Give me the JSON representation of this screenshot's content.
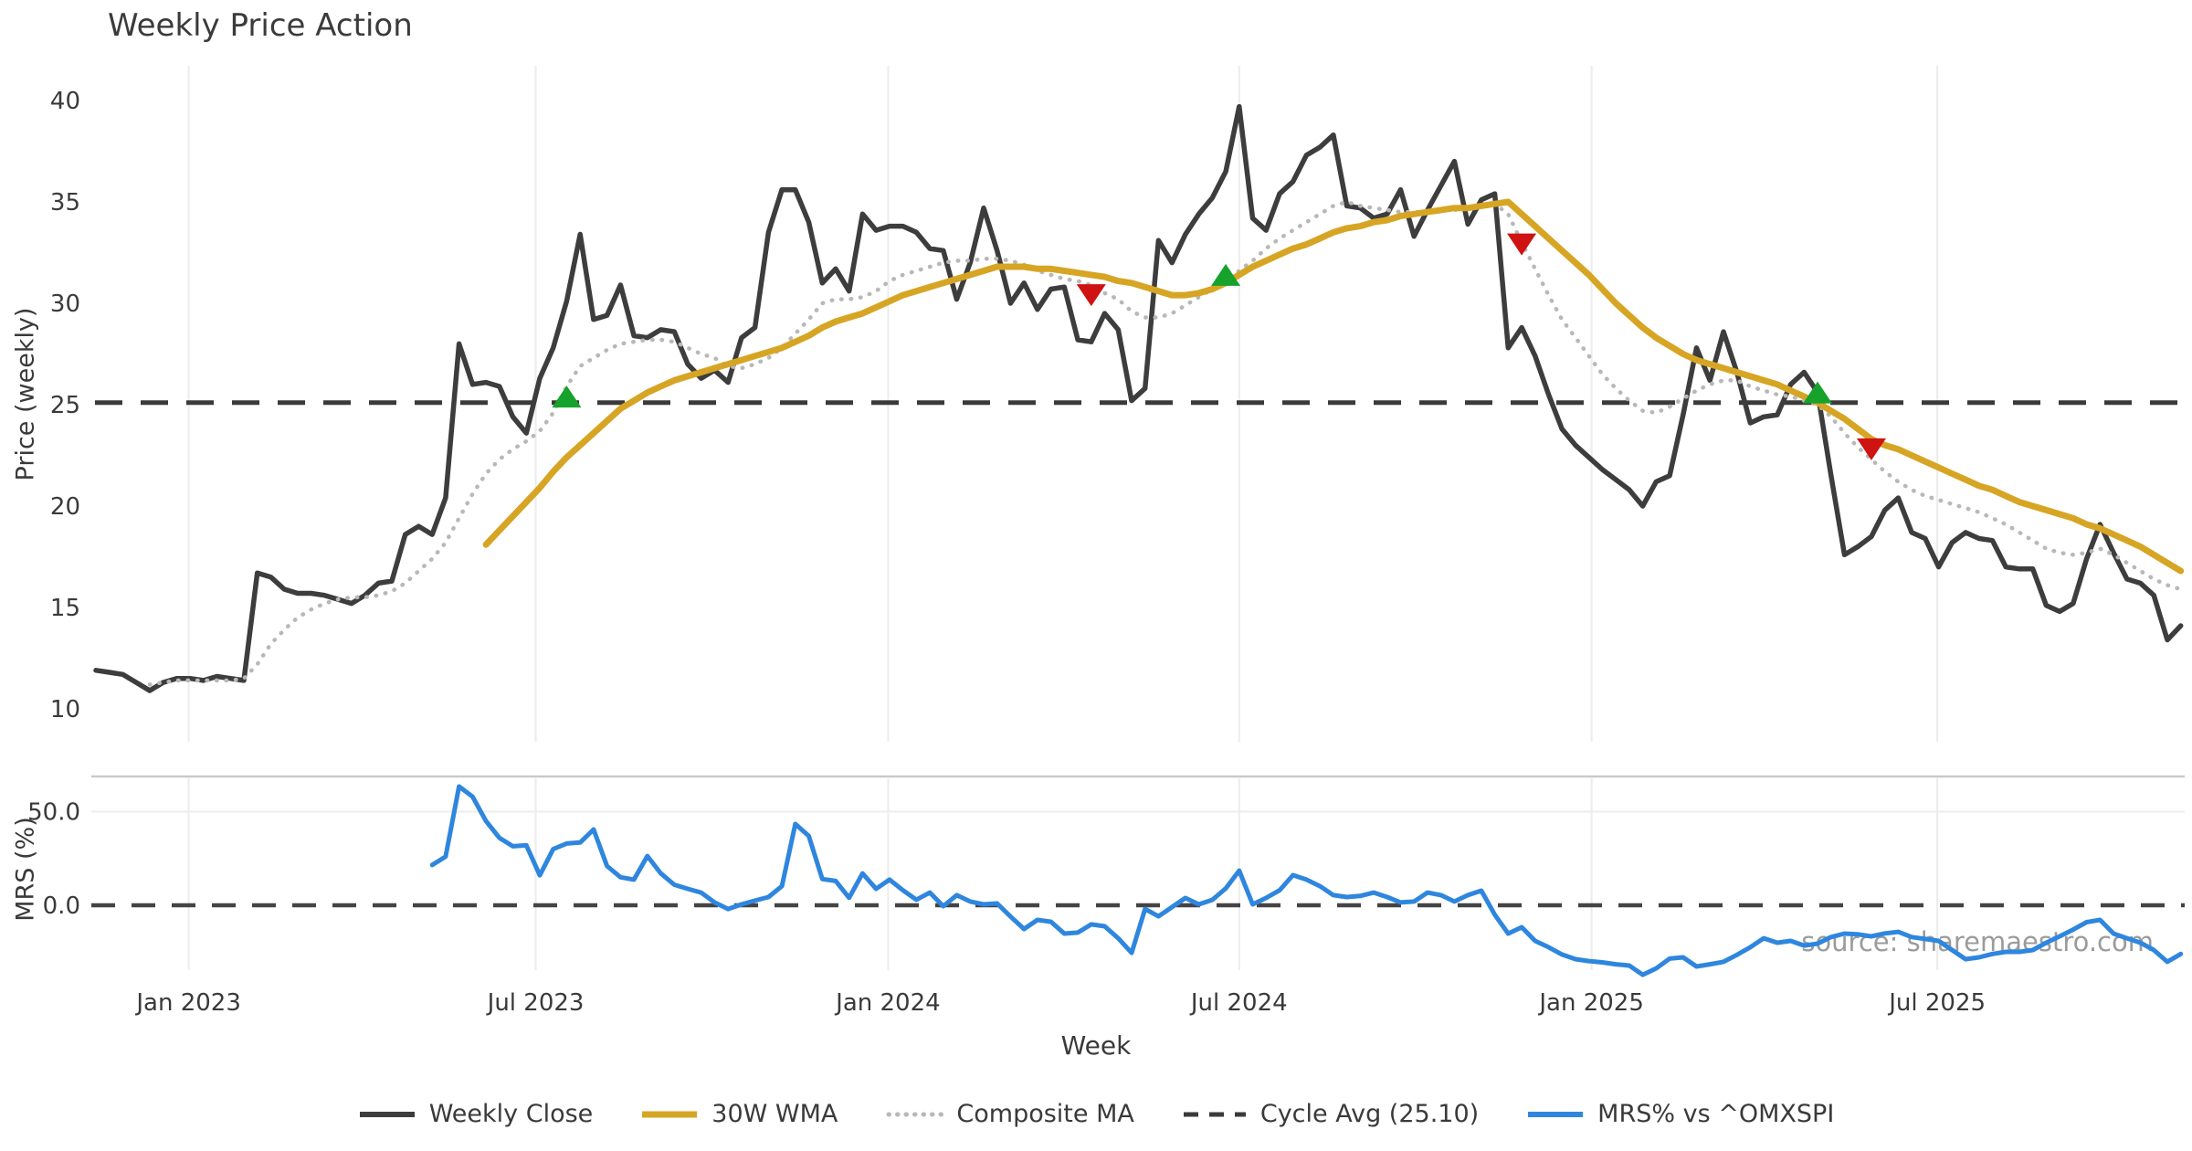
{
  "title": "Weekly Price Action",
  "watermark": "source: sharemaestro.com",
  "axes": {
    "y_main_label": "Price (weekly)",
    "y_lower_label": "MRS (%)",
    "x_label": "Week",
    "y_main_ticks": [
      40,
      35,
      30,
      25,
      20,
      15,
      10
    ],
    "y_lower_ticks": [
      {
        "label": "50.0",
        "value": 50
      },
      {
        "label": "0.0",
        "value": 0
      }
    ],
    "x_ticks": [
      {
        "label": "Jan 2023",
        "week": 6.9
      },
      {
        "label": "Jul 2023",
        "week": 32.7
      },
      {
        "label": "Jan 2024",
        "week": 58.9
      },
      {
        "label": "Jul 2024",
        "week": 85.0
      },
      {
        "label": "Jan 2025",
        "week": 111.2
      },
      {
        "label": "Jul 2025",
        "week": 136.9
      }
    ]
  },
  "legend": {
    "items": [
      {
        "label": "Weekly Close",
        "color": "#3d3d3d",
        "style": "solid"
      },
      {
        "label": "30W WMA",
        "color": "#d7a524",
        "style": "solid"
      },
      {
        "label": "Composite MA",
        "color": "#b8b8b8",
        "style": "dotted"
      },
      {
        "label": "Cycle Avg (25.10)",
        "color": "#3a3a3a",
        "style": "dashed"
      },
      {
        "label": "MRS% vs ^OMXSPI",
        "color": "#2e86de",
        "style": "solid"
      }
    ]
  },
  "colors": {
    "grid": "#ececec",
    "mrs_panel_border": "#c9c9c9",
    "mrs_50_gridline": "#ededed",
    "dashed_reference": "#3a3a3a",
    "tick_text": "#3a3a3a",
    "marker_up": "#17a22b",
    "marker_down": "#cf1212"
  },
  "chart_data": {
    "type": "line",
    "title": "Weekly Price Action",
    "xlabel": "Week",
    "ylabel_price": "Price (weekly)",
    "ylabel_mrs": "MRS (%)",
    "x_unit": "week_index",
    "weeks_total": 156,
    "x_range_dates": [
      "Nov 2022",
      "Nov 2025"
    ],
    "price_ylim": [
      9.5,
      41.5
    ],
    "mrs_ylim": [
      -45,
      68
    ],
    "cycle_avg": 25.1,
    "mrs_zero_line": 0,
    "grid": "vertical-only",
    "legend_position": "bottom",
    "series": [
      {
        "name": "Weekly Close",
        "panel": "price",
        "color": "#3d3d3d",
        "style": "solid",
        "width": 5.5,
        "start_week": 0,
        "values": [
          11.9,
          11.8,
          11.7,
          11.3,
          10.9,
          11.3,
          11.5,
          11.5,
          11.4,
          11.6,
          11.5,
          11.4,
          16.7,
          16.5,
          15.9,
          15.7,
          15.7,
          15.6,
          15.4,
          15.2,
          15.6,
          16.2,
          16.3,
          18.6,
          19.0,
          18.6,
          20.4,
          28.0,
          26.0,
          26.1,
          25.9,
          24.4,
          23.6,
          26.3,
          27.8,
          30.1,
          33.4,
          29.2,
          29.4,
          30.9,
          28.4,
          28.3,
          28.7,
          28.6,
          27.0,
          26.3,
          26.7,
          26.1,
          28.3,
          28.8,
          33.5,
          35.6,
          35.6,
          34.0,
          31.0,
          31.7,
          30.6,
          34.4,
          33.6,
          33.8,
          33.8,
          33.5,
          32.7,
          32.6,
          30.2,
          32.0,
          34.7,
          32.6,
          30.0,
          31.0,
          29.7,
          30.7,
          30.8,
          28.2,
          28.1,
          29.5,
          28.7,
          25.2,
          25.8,
          33.1,
          32.0,
          33.4,
          34.4,
          35.2,
          36.5,
          39.7,
          34.2,
          33.6,
          35.4,
          36.0,
          37.3,
          37.7,
          38.3,
          34.8,
          34.7,
          34.2,
          34.4,
          35.6,
          33.3,
          34.6,
          35.8,
          37.0,
          33.9,
          35.1,
          35.4,
          27.8,
          28.8,
          27.4,
          25.5,
          23.8,
          23.0,
          22.4,
          21.8,
          21.3,
          20.8,
          20.0,
          21.2,
          21.5,
          24.5,
          27.8,
          26.2,
          28.6,
          26.6,
          24.1,
          24.4,
          24.5,
          26.0,
          26.6,
          25.6,
          21.5,
          17.6,
          18.0,
          18.5,
          19.8,
          20.4,
          18.7,
          18.4,
          17.0,
          18.2,
          18.7,
          18.4,
          18.3,
          17.0,
          16.9,
          16.9,
          15.1,
          14.8,
          15.2,
          17.4,
          19.1,
          17.7,
          16.4,
          16.2,
          15.6,
          13.4,
          14.1
        ]
      },
      {
        "name": "Composite MA",
        "panel": "price",
        "color": "#b8b8b8",
        "style": "dotted",
        "width": 4.5,
        "start_week": 4,
        "values": [
          11.2,
          11.3,
          11.4,
          11.4,
          11.4,
          11.4,
          11.4,
          11.5,
          12.2,
          13.2,
          13.9,
          14.5,
          14.9,
          15.2,
          15.4,
          15.5,
          15.5,
          15.6,
          15.8,
          16.2,
          16.8,
          17.4,
          18.2,
          19.4,
          20.6,
          21.6,
          22.3,
          22.8,
          23.2,
          23.7,
          24.6,
          25.9,
          26.9,
          27.3,
          27.7,
          28.0,
          28.1,
          28.2,
          28.2,
          28.1,
          27.8,
          27.5,
          27.3,
          26.9,
          26.8,
          27.0,
          27.3,
          27.8,
          28.5,
          29.2,
          30.0,
          30.2,
          30.2,
          30.3,
          30.6,
          31.1,
          31.4,
          31.6,
          31.8,
          32.0,
          32.1,
          32.1,
          32.2,
          32.2,
          32.1,
          31.9,
          31.6,
          31.4,
          31.2,
          31.1,
          30.9,
          30.5,
          30.2,
          29.6,
          29.3,
          29.3,
          29.5,
          29.9,
          30.3,
          30.7,
          31.1,
          31.6,
          32.1,
          32.7,
          33.2,
          33.6,
          34.0,
          34.4,
          34.8,
          35.0,
          34.8,
          34.7,
          34.6,
          34.5,
          34.5,
          34.5,
          34.6,
          34.6,
          34.7,
          34.8,
          34.9,
          34.4,
          33.0,
          31.7,
          30.4,
          29.2,
          28.3,
          27.4,
          26.5,
          25.8,
          25.2,
          24.7,
          24.6,
          24.9,
          25.3,
          25.7,
          26.0,
          26.2,
          26.2,
          25.9,
          25.7,
          25.5,
          25.4,
          25.2,
          25.0,
          24.4,
          23.6,
          22.9,
          22.3,
          21.7,
          21.2,
          20.8,
          20.5,
          20.3,
          20.1,
          19.9,
          19.7,
          19.4,
          19.1,
          18.7,
          18.3,
          17.9,
          17.7,
          17.6,
          17.7,
          17.9,
          17.6,
          17.2,
          16.8,
          16.4,
          16.1,
          15.9
        ]
      },
      {
        "name": "30W WMA",
        "panel": "price",
        "color": "#d7a524",
        "style": "solid",
        "width": 7,
        "start_week": 29,
        "values": [
          18.1,
          18.8,
          19.5,
          20.2,
          20.9,
          21.7,
          22.4,
          23.0,
          23.6,
          24.2,
          24.8,
          25.2,
          25.6,
          25.9,
          26.2,
          26.4,
          26.6,
          26.8,
          27.0,
          27.2,
          27.4,
          27.6,
          27.8,
          28.1,
          28.4,
          28.8,
          29.1,
          29.3,
          29.5,
          29.8,
          30.1,
          30.4,
          30.6,
          30.8,
          31.0,
          31.2,
          31.4,
          31.6,
          31.8,
          31.8,
          31.8,
          31.7,
          31.7,
          31.6,
          31.5,
          31.4,
          31.3,
          31.1,
          31.0,
          30.8,
          30.6,
          30.4,
          30.4,
          30.5,
          30.7,
          31.0,
          31.4,
          31.8,
          32.1,
          32.4,
          32.7,
          32.9,
          33.2,
          33.5,
          33.7,
          33.8,
          34.0,
          34.1,
          34.3,
          34.4,
          34.5,
          34.6,
          34.7,
          34.7,
          34.8,
          34.9,
          35.0,
          34.4,
          33.8,
          33.2,
          32.6,
          32.0,
          31.4,
          30.7,
          30.0,
          29.4,
          28.8,
          28.3,
          27.9,
          27.5,
          27.2,
          27.0,
          26.8,
          26.6,
          26.4,
          26.2,
          26.0,
          25.7,
          25.4,
          25.1,
          24.7,
          24.3,
          23.8,
          23.3,
          23.0,
          22.8,
          22.5,
          22.2,
          21.9,
          21.6,
          21.3,
          21.0,
          20.8,
          20.5,
          20.2,
          20.0,
          19.8,
          19.6,
          19.4,
          19.1,
          18.9,
          18.6,
          18.3,
          18.0,
          17.6,
          17.2,
          16.8
        ]
      },
      {
        "name": "MRS% vs ^OMXSPI",
        "panel": "mrs",
        "color": "#2e86de",
        "style": "solid",
        "width": 5,
        "start_week": 25,
        "values": [
          21.5,
          26.0,
          63.4,
          58.0,
          45.0,
          36.0,
          31.5,
          32.0,
          16.0,
          30.0,
          33.0,
          33.5,
          40.5,
          21.0,
          15.0,
          13.7,
          26.3,
          17.0,
          11.0,
          8.8,
          6.8,
          1.5,
          -2.0,
          0.5,
          2.5,
          4.4,
          10.2,
          43.4,
          37.0,
          14.0,
          13.0,
          4.0,
          17.0,
          8.8,
          13.7,
          8.0,
          3.0,
          6.8,
          -0.5,
          5.4,
          2.0,
          0.5,
          1.0,
          -6.0,
          -12.7,
          -7.8,
          -8.8,
          -15.1,
          -14.6,
          -10.2,
          -11.2,
          -17.6,
          -25.4,
          -2.0,
          -5.9,
          -1.0,
          3.9,
          0.5,
          2.9,
          9.0,
          18.5,
          0.5,
          3.9,
          8.0,
          16.1,
          13.7,
          10.2,
          5.4,
          4.4,
          5.0,
          6.8,
          4.4,
          1.5,
          2.0,
          6.8,
          5.4,
          2.0,
          5.4,
          7.8,
          -5.0,
          -15.1,
          -11.7,
          -19.0,
          -22.4,
          -26.3,
          -28.8,
          -29.8,
          -30.5,
          -31.5,
          -32.2,
          -37.1,
          -33.7,
          -28.5,
          -27.8,
          -32.7,
          -31.5,
          -30.2,
          -26.5,
          -22.4,
          -17.6,
          -20.0,
          -19.0,
          -21.5,
          -20.5,
          -17.0,
          -15.1,
          -15.5,
          -16.6,
          -15.0,
          -14.2,
          -17.0,
          -18.0,
          -19.0,
          -23.9,
          -28.8,
          -27.8,
          -26.0,
          -24.9,
          -24.9,
          -23.9,
          -20.0,
          -16.6,
          -13.0,
          -9.0,
          -7.8,
          -15.1,
          -17.6,
          -20.0,
          -23.9,
          -30.2,
          -26.0
        ]
      }
    ],
    "markers": [
      {
        "week": 35,
        "price": 25.4,
        "dir": "up"
      },
      {
        "week": 74,
        "price": 30.4,
        "dir": "down"
      },
      {
        "week": 84,
        "price": 31.4,
        "dir": "up"
      },
      {
        "week": 106,
        "price": 32.9,
        "dir": "down"
      },
      {
        "week": 128,
        "price": 25.6,
        "dir": "up"
      },
      {
        "week": 132,
        "price": 22.8,
        "dir": "down"
      }
    ]
  }
}
